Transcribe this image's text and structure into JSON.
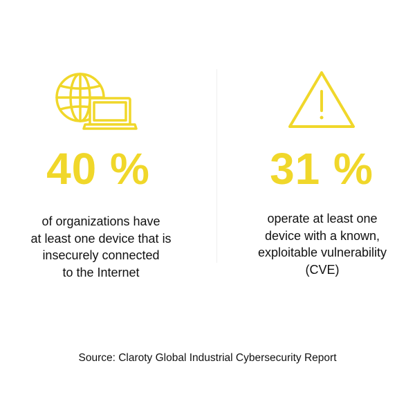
{
  "colors": {
    "accent": "#F0D72A",
    "text": "#111111",
    "background": "#FFFFFF",
    "divider": "#EFEFEF"
  },
  "stats": [
    {
      "icon": "globe-laptop-icon",
      "value": "40 %",
      "description": "of organizations have\nat least one device that is\ninsecurely connected\nto the Internet"
    },
    {
      "icon": "warning-triangle-icon",
      "value": "31 %",
      "description": "operate at least one\ndevice with a known,\nexploitable vulnerability\n(CVE)"
    }
  ],
  "source": "Source: Claroty Global Industrial Cybersecurity Report"
}
